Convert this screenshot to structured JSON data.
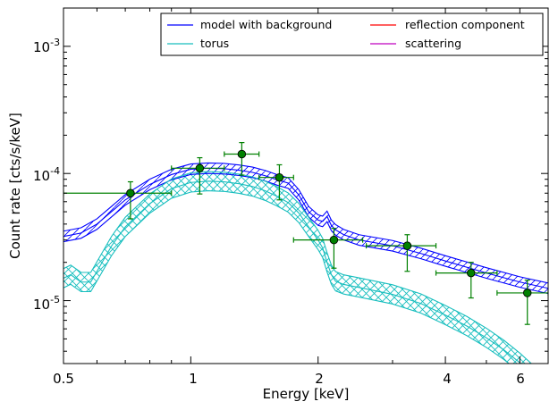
{
  "chart_data": {
    "type": "line",
    "xlabel": "Energy [keV]",
    "ylabel": "Count rate [cts/s/keV]",
    "x_scale": "log",
    "y_scale": "log",
    "xlim": [
      0.5,
      7.0
    ],
    "ylim": [
      3.2e-06,
      0.002
    ],
    "grid": false,
    "legend_position": "top-right",
    "x_ticks": [
      {
        "value": 0.5,
        "label": "0.5"
      },
      {
        "value": 1,
        "label": "1"
      },
      {
        "value": 2,
        "label": "2"
      },
      {
        "value": 4,
        "label": "4"
      },
      {
        "value": 6,
        "label": "6"
      }
    ],
    "y_ticks": [
      {
        "value": 1e-05,
        "label": "10",
        "exp": "-5"
      },
      {
        "value": 0.0001,
        "label": "10",
        "exp": "-4"
      },
      {
        "value": 0.001,
        "label": "10",
        "exp": "-3"
      }
    ],
    "legend": [
      {
        "name": "model with background",
        "color": "#0000ff"
      },
      {
        "name": "torus",
        "color": "#17bebe"
      },
      {
        "name": "reflection component",
        "color": "#ff0000"
      },
      {
        "name": "scattering",
        "color": "#bf00bf"
      }
    ],
    "series": [
      {
        "name": "model with background",
        "color": "#0000ff",
        "x": [
          0.5,
          0.55,
          0.6,
          0.7,
          0.8,
          0.9,
          1.0,
          1.1,
          1.2,
          1.3,
          1.4,
          1.5,
          1.6,
          1.7,
          1.8,
          1.9,
          2.0,
          2.05,
          2.1,
          2.15,
          2.2,
          2.3,
          2.5,
          3.0,
          3.5,
          4.0,
          5.0,
          6.0,
          7.0
        ],
        "mid": [
          3.2e-05,
          3.4e-05,
          4e-05,
          6.2e-05,
          8.2e-05,
          9.8e-05,
          0.000108,
          0.00011,
          0.000109,
          0.000106,
          0.000102,
          9.6e-05,
          8.9e-05,
          8.4e-05,
          6.8e-05,
          5e-05,
          4.3e-05,
          4.2e-05,
          4.6e-05,
          3.9e-05,
          3.6e-05,
          3.3e-05,
          3e-05,
          2.7e-05,
          2.35e-05,
          2.05e-05,
          1.65e-05,
          1.4e-05,
          1.25e-05
        ],
        "err": 0.1
      },
      {
        "name": "torus",
        "color": "#17bebe",
        "x": [
          0.5,
          0.52,
          0.55,
          0.58,
          0.6,
          0.65,
          0.7,
          0.8,
          0.9,
          1.0,
          1.1,
          1.2,
          1.3,
          1.4,
          1.5,
          1.6,
          1.7,
          1.8,
          1.9,
          2.0,
          2.05,
          2.1,
          2.15,
          2.2,
          2.3,
          2.5,
          3.0,
          3.5,
          4.0,
          4.5,
          5.0,
          5.5,
          6.0,
          6.5,
          7.0
        ],
        "mid": [
          1.5e-05,
          1.6e-05,
          1.4e-05,
          1.4e-05,
          1.7e-05,
          2.7e-05,
          3.8e-05,
          5.8e-05,
          7.6e-05,
          8.5e-05,
          8.7e-05,
          8.6e-05,
          8.3e-05,
          7.9e-05,
          7.3e-05,
          6.6e-05,
          5.9e-05,
          4.9e-05,
          3.8e-05,
          3e-05,
          2.6e-05,
          2e-05,
          1.6e-05,
          1.42e-05,
          1.34e-05,
          1.27e-05,
          1.12e-05,
          9.5e-06,
          7.7e-06,
          6.3e-06,
          5.1e-06,
          4.1e-06,
          3.25e-06,
          2.55e-06,
          2e-06
        ],
        "err": 0.19
      }
    ],
    "data_points": {
      "name": "data",
      "color": "#008000",
      "points": [
        {
          "x": 0.72,
          "y": 7e-05,
          "xerr_lo": 0.22,
          "xerr_hi": 0.18,
          "yerr_lo": 2.6e-05,
          "yerr_hi": 1.6e-05
        },
        {
          "x": 1.05,
          "y": 0.00011,
          "xerr_lo": 0.15,
          "xerr_hi": 0.15,
          "yerr_lo": 4.1e-05,
          "yerr_hi": 2.3e-05
        },
        {
          "x": 1.32,
          "y": 0.000142,
          "xerr_lo": 0.12,
          "xerr_hi": 0.13,
          "yerr_lo": 4.5e-05,
          "yerr_hi": 3.3e-05
        },
        {
          "x": 1.62,
          "y": 9.3e-05,
          "xerr_lo": 0.17,
          "xerr_hi": 0.13,
          "yerr_lo": 3.1e-05,
          "yerr_hi": 2.4e-05
        },
        {
          "x": 2.18,
          "y": 3e-05,
          "xerr_lo": 0.43,
          "xerr_hi": 0.37,
          "yerr_lo": 1.2e-05,
          "yerr_hi": 7e-06
        },
        {
          "x": 3.25,
          "y": 2.7e-05,
          "xerr_lo": 0.65,
          "xerr_hi": 0.55,
          "yerr_lo": 1e-05,
          "yerr_hi": 6e-06
        },
        {
          "x": 4.6,
          "y": 1.65e-05,
          "xerr_lo": 0.8,
          "xerr_hi": 0.7,
          "yerr_lo": 6e-06,
          "yerr_hi": 3.5e-06
        },
        {
          "x": 6.25,
          "y": 1.15e-05,
          "xerr_lo": 0.95,
          "xerr_hi": 0.75,
          "yerr_lo": 5e-06,
          "yerr_hi": 3e-06
        }
      ]
    }
  }
}
